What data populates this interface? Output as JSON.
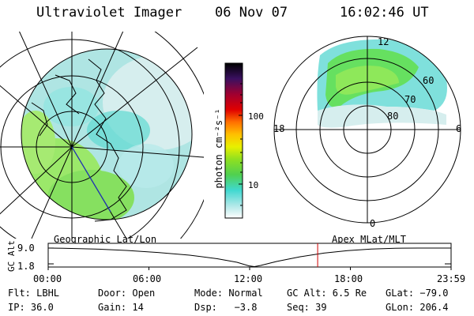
{
  "header": {
    "title": "Ultraviolet Imager",
    "date": "06 Nov 07",
    "time": "16:02:46 UT"
  },
  "colorbar": {
    "unit_label": "photon cm⁻²s⁻¹",
    "ticks": [
      "100",
      "10"
    ]
  },
  "polar_plot": {
    "mlt_labels": {
      "top": "12",
      "bottom": "0",
      "left": "18",
      "right": "6"
    },
    "lat_labels": [
      "60",
      "70",
      "80"
    ]
  },
  "timeline": {
    "y_label": "GC Alt",
    "y_ticks": [
      "9.0",
      "1.8"
    ],
    "left_caption": "Geographic Lat/Lon",
    "right_caption": "Apex MLat/MLT",
    "x_ticks": [
      "00:00",
      "06:00",
      "12:00",
      "18:00",
      "23:59"
    ],
    "current_marker_hours": 16.05,
    "marker_color": "#d00000"
  },
  "status": {
    "row1": {
      "filter": "Flt: LBHL",
      "door": "Door: Open",
      "mode": "Mode: Normal",
      "gc_alt": "GC Alt: 6.5 Re",
      "glat": "GLat: −79.0"
    },
    "row2": {
      "ip": "IP: 36.0",
      "gain": "Gain: 14",
      "dsp": "Dsp:   −3.8",
      "seq": "Seq: 39",
      "glon": "GLon: 206.4"
    }
  }
}
